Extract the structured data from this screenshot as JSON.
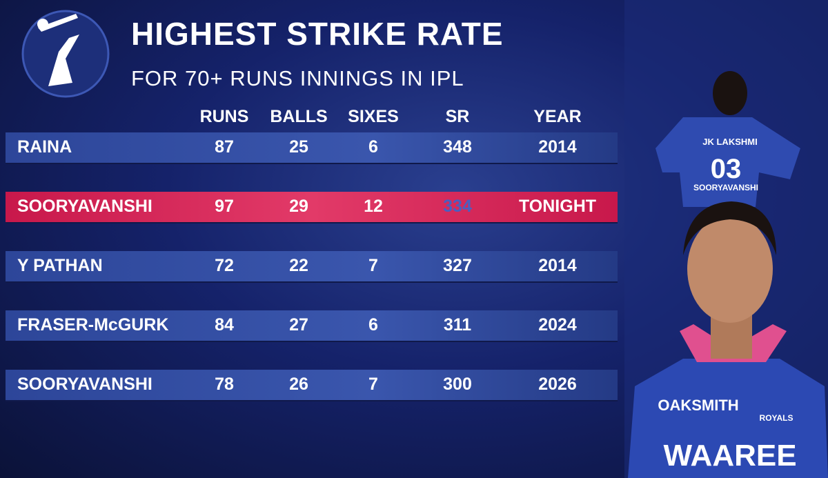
{
  "header": {
    "title": "HIGHEST STRIKE RATE",
    "subtitle": "FOR 70+  RUNS INNINGS IN IPL"
  },
  "table": {
    "columns": [
      "RUNS",
      "BALLS",
      "SIXES",
      "SR",
      "YEAR"
    ],
    "highlighted_row": 1,
    "rows": [
      [
        "RAINA",
        87,
        25,
        6,
        348,
        2014
      ],
      [
        "SOORYAVANSHI",
        97,
        29,
        12,
        334,
        "TONIGHT"
      ],
      [
        "Y PATHAN",
        72,
        22,
        7,
        327,
        2014
      ],
      [
        "FRASER-McGURK",
        84,
        27,
        6,
        311,
        2024
      ],
      [
        "SOORYAVANSHI",
        78,
        26,
        7,
        300,
        2026
      ]
    ]
  },
  "player_image": {
    "back_sponsor": "JK LAKSHMI",
    "back_number": "03",
    "back_name": "SOORYAVANSHI",
    "chest_sponsor": "OAKSMITH",
    "team": "ROYALS",
    "front_sponsor": "WAAREE"
  }
}
